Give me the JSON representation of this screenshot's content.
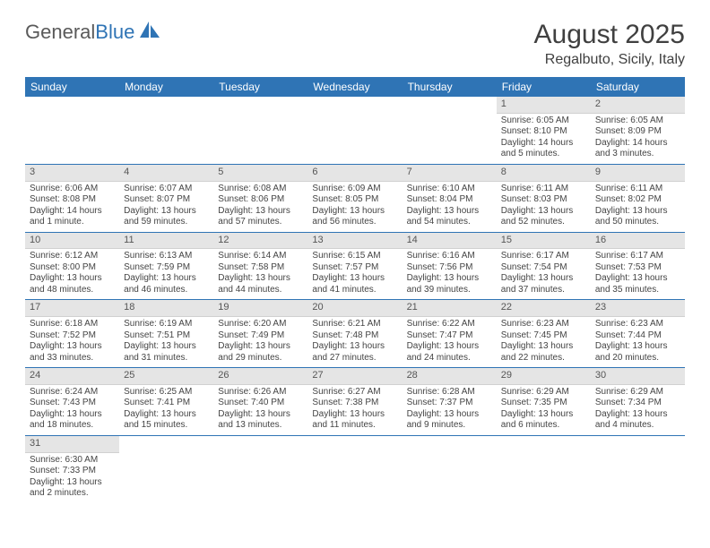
{
  "logo": {
    "text1": "General",
    "text2": "Blue"
  },
  "title": "August 2025",
  "location": "Regalbuto, Sicily, Italy",
  "day_headers": [
    "Sunday",
    "Monday",
    "Tuesday",
    "Wednesday",
    "Thursday",
    "Friday",
    "Saturday"
  ],
  "colors": {
    "header_bg": "#2f74b5",
    "header_fg": "#ffffff",
    "daynum_bg": "#e5e5e5",
    "border": "#2f74b5"
  },
  "first_weekday": 5,
  "days": [
    {
      "n": 1,
      "sunrise": "6:05 AM",
      "sunset": "8:10 PM",
      "daylight": "14 hours and 5 minutes."
    },
    {
      "n": 2,
      "sunrise": "6:05 AM",
      "sunset": "8:09 PM",
      "daylight": "14 hours and 3 minutes."
    },
    {
      "n": 3,
      "sunrise": "6:06 AM",
      "sunset": "8:08 PM",
      "daylight": "14 hours and 1 minute."
    },
    {
      "n": 4,
      "sunrise": "6:07 AM",
      "sunset": "8:07 PM",
      "daylight": "13 hours and 59 minutes."
    },
    {
      "n": 5,
      "sunrise": "6:08 AM",
      "sunset": "8:06 PM",
      "daylight": "13 hours and 57 minutes."
    },
    {
      "n": 6,
      "sunrise": "6:09 AM",
      "sunset": "8:05 PM",
      "daylight": "13 hours and 56 minutes."
    },
    {
      "n": 7,
      "sunrise": "6:10 AM",
      "sunset": "8:04 PM",
      "daylight": "13 hours and 54 minutes."
    },
    {
      "n": 8,
      "sunrise": "6:11 AM",
      "sunset": "8:03 PM",
      "daylight": "13 hours and 52 minutes."
    },
    {
      "n": 9,
      "sunrise": "6:11 AM",
      "sunset": "8:02 PM",
      "daylight": "13 hours and 50 minutes."
    },
    {
      "n": 10,
      "sunrise": "6:12 AM",
      "sunset": "8:00 PM",
      "daylight": "13 hours and 48 minutes."
    },
    {
      "n": 11,
      "sunrise": "6:13 AM",
      "sunset": "7:59 PM",
      "daylight": "13 hours and 46 minutes."
    },
    {
      "n": 12,
      "sunrise": "6:14 AM",
      "sunset": "7:58 PM",
      "daylight": "13 hours and 44 minutes."
    },
    {
      "n": 13,
      "sunrise": "6:15 AM",
      "sunset": "7:57 PM",
      "daylight": "13 hours and 41 minutes."
    },
    {
      "n": 14,
      "sunrise": "6:16 AM",
      "sunset": "7:56 PM",
      "daylight": "13 hours and 39 minutes."
    },
    {
      "n": 15,
      "sunrise": "6:17 AM",
      "sunset": "7:54 PM",
      "daylight": "13 hours and 37 minutes."
    },
    {
      "n": 16,
      "sunrise": "6:17 AM",
      "sunset": "7:53 PM",
      "daylight": "13 hours and 35 minutes."
    },
    {
      "n": 17,
      "sunrise": "6:18 AM",
      "sunset": "7:52 PM",
      "daylight": "13 hours and 33 minutes."
    },
    {
      "n": 18,
      "sunrise": "6:19 AM",
      "sunset": "7:51 PM",
      "daylight": "13 hours and 31 minutes."
    },
    {
      "n": 19,
      "sunrise": "6:20 AM",
      "sunset": "7:49 PM",
      "daylight": "13 hours and 29 minutes."
    },
    {
      "n": 20,
      "sunrise": "6:21 AM",
      "sunset": "7:48 PM",
      "daylight": "13 hours and 27 minutes."
    },
    {
      "n": 21,
      "sunrise": "6:22 AM",
      "sunset": "7:47 PM",
      "daylight": "13 hours and 24 minutes."
    },
    {
      "n": 22,
      "sunrise": "6:23 AM",
      "sunset": "7:45 PM",
      "daylight": "13 hours and 22 minutes."
    },
    {
      "n": 23,
      "sunrise": "6:23 AM",
      "sunset": "7:44 PM",
      "daylight": "13 hours and 20 minutes."
    },
    {
      "n": 24,
      "sunrise": "6:24 AM",
      "sunset": "7:43 PM",
      "daylight": "13 hours and 18 minutes."
    },
    {
      "n": 25,
      "sunrise": "6:25 AM",
      "sunset": "7:41 PM",
      "daylight": "13 hours and 15 minutes."
    },
    {
      "n": 26,
      "sunrise": "6:26 AM",
      "sunset": "7:40 PM",
      "daylight": "13 hours and 13 minutes."
    },
    {
      "n": 27,
      "sunrise": "6:27 AM",
      "sunset": "7:38 PM",
      "daylight": "13 hours and 11 minutes."
    },
    {
      "n": 28,
      "sunrise": "6:28 AM",
      "sunset": "7:37 PM",
      "daylight": "13 hours and 9 minutes."
    },
    {
      "n": 29,
      "sunrise": "6:29 AM",
      "sunset": "7:35 PM",
      "daylight": "13 hours and 6 minutes."
    },
    {
      "n": 30,
      "sunrise": "6:29 AM",
      "sunset": "7:34 PM",
      "daylight": "13 hours and 4 minutes."
    },
    {
      "n": 31,
      "sunrise": "6:30 AM",
      "sunset": "7:33 PM",
      "daylight": "13 hours and 2 minutes."
    }
  ]
}
